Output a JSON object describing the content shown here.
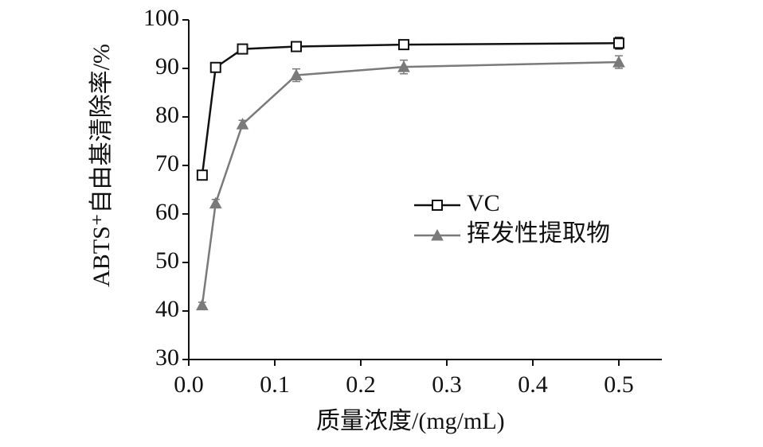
{
  "chart_data": {
    "type": "line",
    "y_label": "ABTS⁺自由基清除率/%",
    "x_label": "质量浓度/(mg/mL)",
    "x": [
      0.015625,
      0.03125,
      0.0625,
      0.125,
      0.25,
      0.5
    ],
    "series": [
      {
        "name": "VC",
        "color": "#111111",
        "marker": "square",
        "values": [
          68,
          90.2,
          94,
          94.5,
          94.9,
          95.2
        ],
        "errors": [
          0.7,
          0.7,
          0.7,
          0.7,
          0.9,
          1.2
        ]
      },
      {
        "name": "挥发性提取物",
        "color": "#7a7a7a",
        "marker": "triangle",
        "values": [
          41.2,
          62.2,
          78.5,
          88.6,
          90.3,
          91.3
        ],
        "errors": [
          0.6,
          0.8,
          0.8,
          1.3,
          1.4,
          1.3
        ]
      }
    ],
    "xlim": [
      0,
      0.55
    ],
    "xticks": [
      {
        "value": 0,
        "label": "0.0"
      },
      0.1,
      0.2,
      0.3,
      0.4,
      0.5
    ],
    "ylim": [
      30,
      100
    ],
    "yticks": [
      30,
      40,
      50,
      60,
      70,
      80,
      90,
      100
    ],
    "legend": "center-right"
  }
}
